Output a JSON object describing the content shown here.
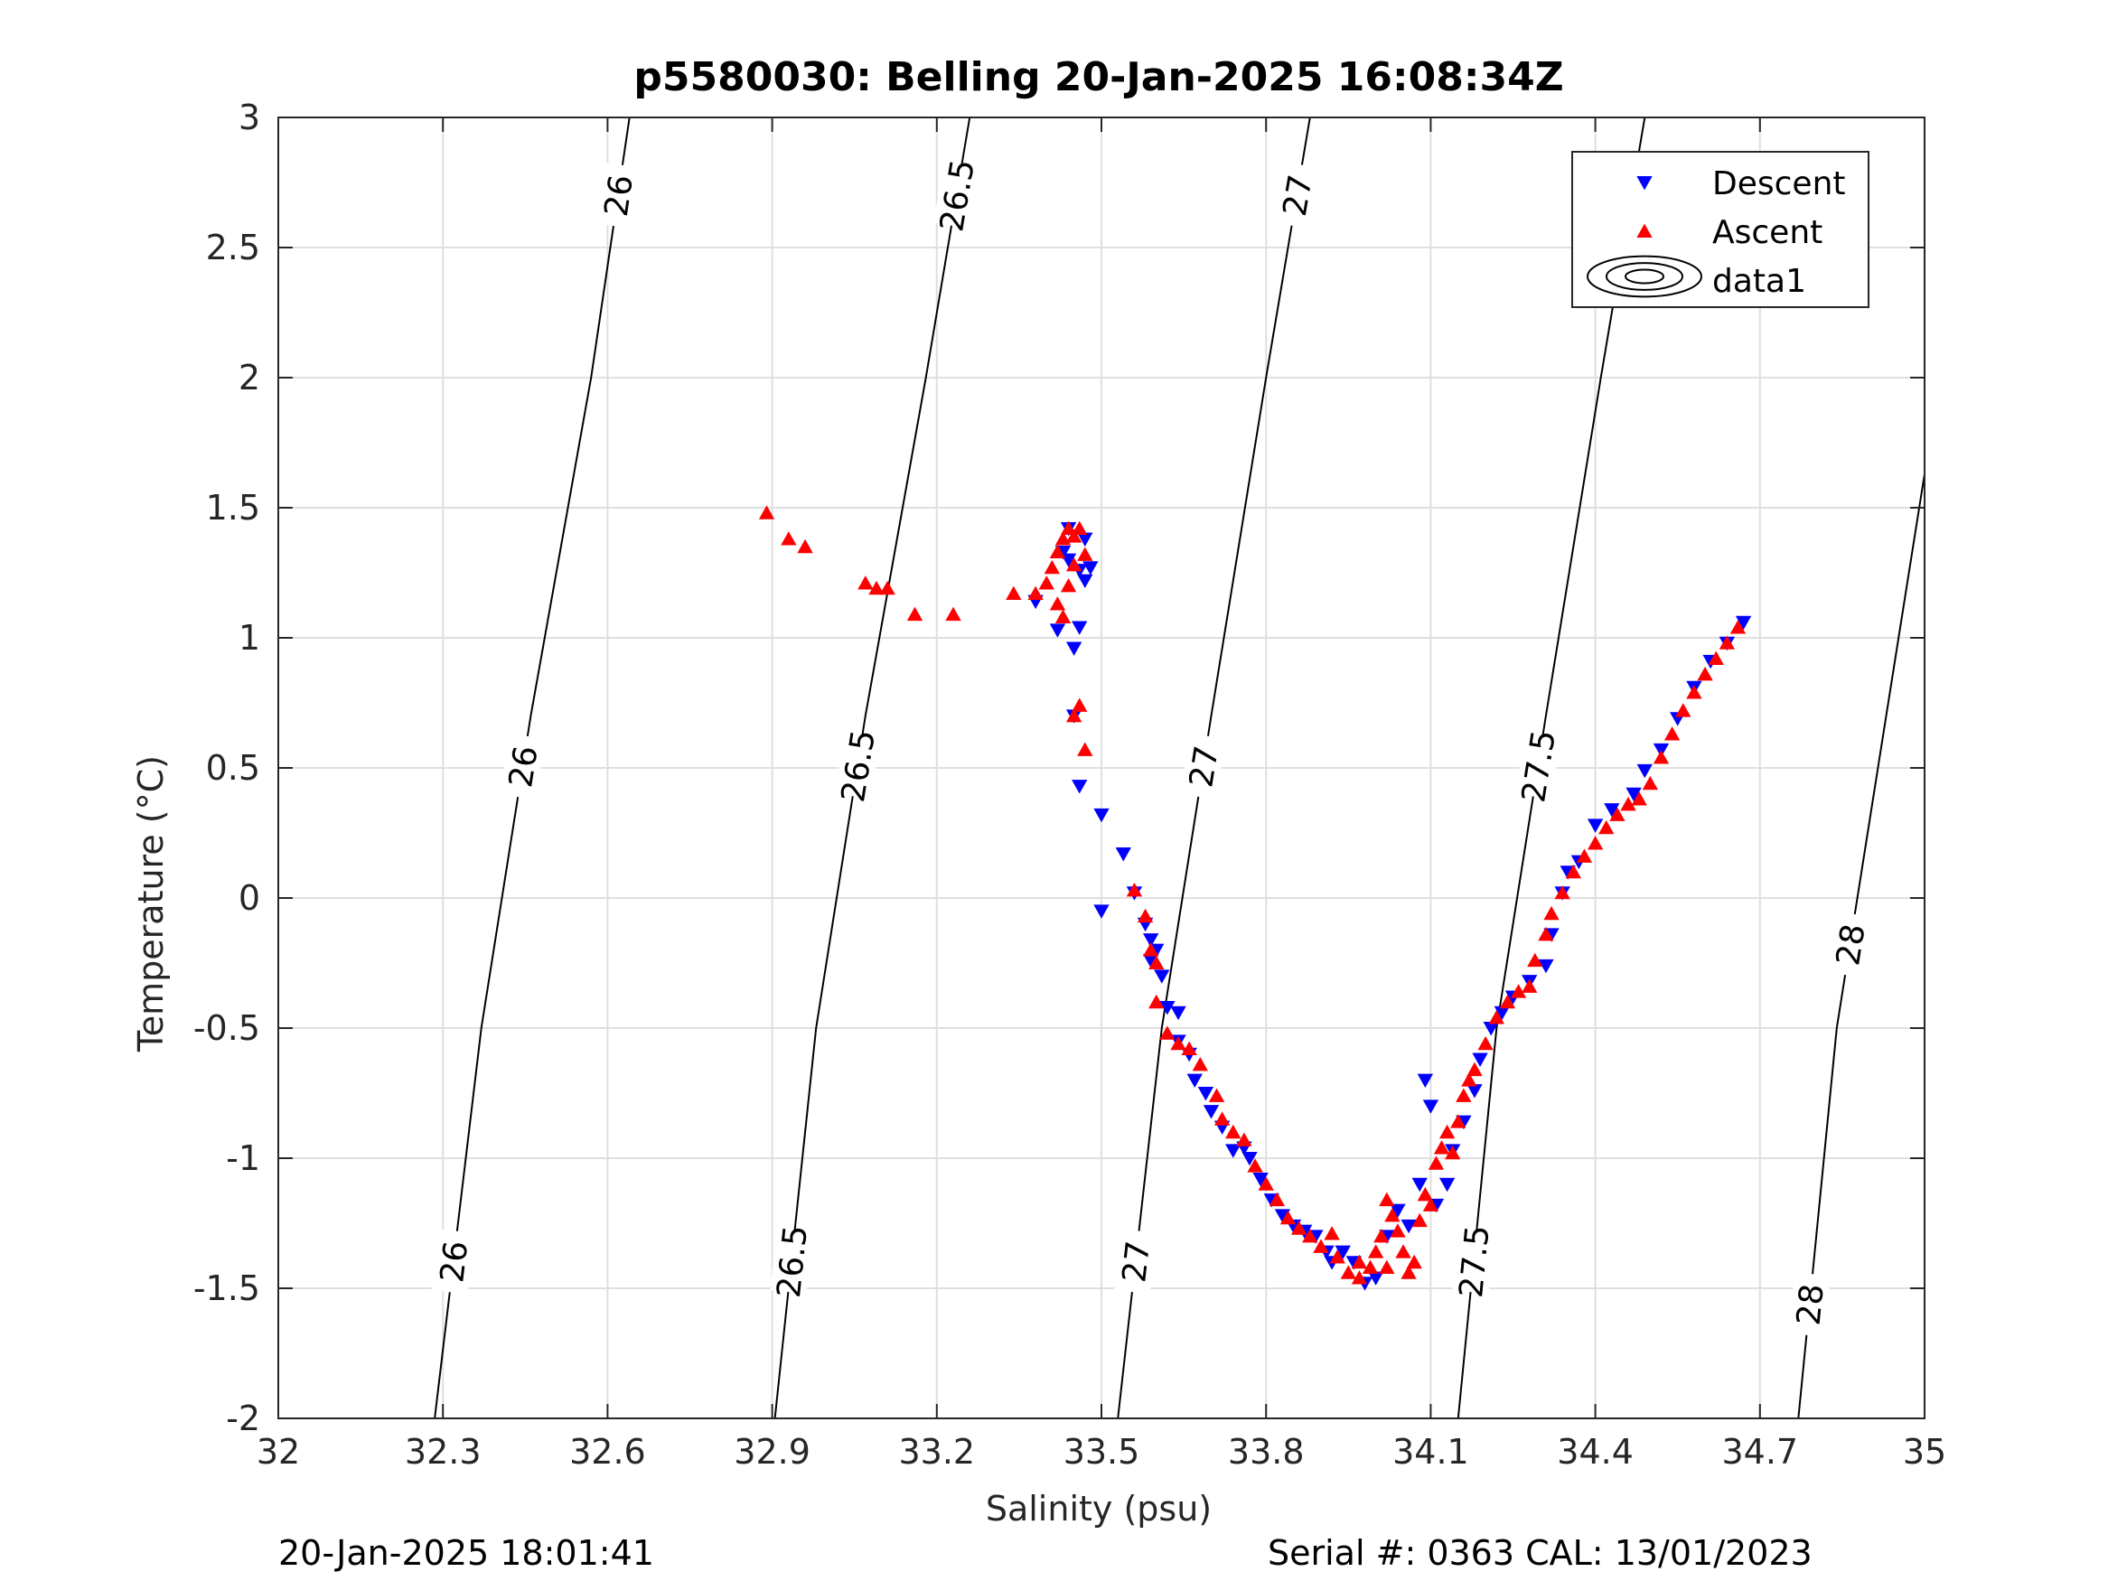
{
  "chart_data": {
    "type": "scatter",
    "title": "p5580030: Belling 20-Jan-2025 16:08:34Z",
    "xlabel": "Salinity (psu)",
    "ylabel": "Temperature (°C)",
    "xlim": [
      32,
      35
    ],
    "ylim": [
      -2,
      3
    ],
    "x_ticks": [
      "32",
      "32.3",
      "32.6",
      "32.9",
      "33.2",
      "33.5",
      "33.8",
      "34.1",
      "34.4",
      "34.7",
      "35"
    ],
    "y_ticks": [
      "-2",
      "-1.5",
      "-1",
      "-0.5",
      "0",
      "0.5",
      "1",
      "1.5",
      "2",
      "2.5",
      "3"
    ],
    "grid": true,
    "legend_position": "top-right",
    "legend": [
      "Descent",
      "Ascent",
      "data1"
    ],
    "colors": {
      "descent": "#0000ff",
      "ascent": "#ff0000",
      "contour": "#000000"
    },
    "series": [
      {
        "name": "Descent",
        "marker": "triangle-down",
        "points": [
          [
            33.47,
            1.38
          ],
          [
            33.48,
            1.27
          ],
          [
            33.46,
            1.26
          ],
          [
            33.44,
            1.3
          ],
          [
            33.46,
            1.04
          ],
          [
            33.45,
            0.96
          ],
          [
            33.42,
            1.03
          ],
          [
            33.45,
            0.7
          ],
          [
            33.46,
            0.43
          ],
          [
            33.5,
            0.32
          ],
          [
            33.54,
            0.17
          ],
          [
            33.56,
            0.02
          ],
          [
            33.58,
            -0.1
          ],
          [
            33.59,
            -0.16
          ],
          [
            33.59,
            -0.24
          ],
          [
            33.61,
            -0.3
          ],
          [
            33.62,
            -0.42
          ],
          [
            33.64,
            -0.44
          ],
          [
            33.64,
            -0.55
          ],
          [
            33.66,
            -0.6
          ],
          [
            33.67,
            -0.7
          ],
          [
            33.69,
            -0.75
          ],
          [
            33.7,
            -0.82
          ],
          [
            33.72,
            -0.88
          ],
          [
            33.74,
            -0.97
          ],
          [
            33.76,
            -0.96
          ],
          [
            33.77,
            -1.0
          ],
          [
            33.79,
            -1.08
          ],
          [
            33.81,
            -1.16
          ],
          [
            33.83,
            -1.22
          ],
          [
            33.85,
            -1.26
          ],
          [
            33.87,
            -1.28
          ],
          [
            33.89,
            -1.3
          ],
          [
            33.91,
            -1.36
          ],
          [
            33.92,
            -1.4
          ],
          [
            33.94,
            -1.36
          ],
          [
            33.96,
            -1.4
          ],
          [
            33.98,
            -1.48
          ],
          [
            34.0,
            -1.46
          ],
          [
            34.02,
            -1.3
          ],
          [
            34.04,
            -1.2
          ],
          [
            34.06,
            -1.26
          ],
          [
            34.08,
            -1.1
          ],
          [
            34.09,
            -0.7
          ],
          [
            34.1,
            -0.8
          ],
          [
            34.11,
            -1.18
          ],
          [
            34.13,
            -1.1
          ],
          [
            34.14,
            -0.97
          ],
          [
            34.16,
            -0.86
          ],
          [
            34.18,
            -0.74
          ],
          [
            34.19,
            -0.62
          ],
          [
            34.21,
            -0.5
          ],
          [
            34.23,
            -0.44
          ],
          [
            34.25,
            -0.38
          ],
          [
            34.28,
            -0.32
          ],
          [
            34.31,
            -0.26
          ],
          [
            34.32,
            -0.14
          ],
          [
            34.34,
            0.02
          ],
          [
            34.35,
            0.1
          ],
          [
            34.37,
            0.14
          ],
          [
            34.4,
            0.28
          ],
          [
            34.43,
            0.34
          ],
          [
            34.47,
            0.4
          ],
          [
            34.49,
            0.49
          ],
          [
            34.52,
            0.57
          ],
          [
            34.55,
            0.69
          ],
          [
            34.58,
            0.81
          ],
          [
            34.61,
            0.91
          ],
          [
            34.64,
            0.98
          ],
          [
            34.67,
            1.06
          ],
          [
            33.38,
            1.14
          ],
          [
            33.43,
            1.33
          ],
          [
            33.44,
            1.42
          ],
          [
            33.47,
            1.22
          ],
          [
            33.5,
            -0.05
          ],
          [
            33.6,
            -0.2
          ]
        ]
      },
      {
        "name": "Ascent",
        "marker": "triangle-up",
        "points": [
          [
            32.89,
            1.48
          ],
          [
            32.93,
            1.38
          ],
          [
            32.96,
            1.35
          ],
          [
            33.07,
            1.21
          ],
          [
            33.09,
            1.19
          ],
          [
            33.11,
            1.19
          ],
          [
            33.16,
            1.09
          ],
          [
            33.23,
            1.09
          ],
          [
            33.34,
            1.17
          ],
          [
            33.38,
            1.17
          ],
          [
            33.4,
            1.21
          ],
          [
            33.41,
            1.27
          ],
          [
            33.42,
            1.33
          ],
          [
            33.43,
            1.38
          ],
          [
            33.44,
            1.42
          ],
          [
            33.45,
            1.39
          ],
          [
            33.46,
            1.42
          ],
          [
            33.44,
            1.2
          ],
          [
            33.43,
            1.08
          ],
          [
            33.45,
            1.28
          ],
          [
            33.46,
            0.74
          ],
          [
            33.45,
            0.7
          ],
          [
            33.47,
            0.57
          ],
          [
            33.56,
            0.03
          ],
          [
            33.58,
            -0.07
          ],
          [
            33.59,
            -0.2
          ],
          [
            33.6,
            -0.25
          ],
          [
            33.6,
            -0.4
          ],
          [
            33.62,
            -0.52
          ],
          [
            33.64,
            -0.56
          ],
          [
            33.66,
            -0.58
          ],
          [
            33.68,
            -0.64
          ],
          [
            33.71,
            -0.76
          ],
          [
            33.72,
            -0.85
          ],
          [
            33.74,
            -0.9
          ],
          [
            33.76,
            -0.93
          ],
          [
            33.78,
            -1.03
          ],
          [
            33.8,
            -1.1
          ],
          [
            33.82,
            -1.16
          ],
          [
            33.84,
            -1.23
          ],
          [
            33.86,
            -1.27
          ],
          [
            33.88,
            -1.3
          ],
          [
            33.9,
            -1.34
          ],
          [
            33.92,
            -1.29
          ],
          [
            33.93,
            -1.38
          ],
          [
            33.95,
            -1.44
          ],
          [
            33.97,
            -1.46
          ],
          [
            33.99,
            -1.42
          ],
          [
            34.0,
            -1.36
          ],
          [
            34.01,
            -1.3
          ],
          [
            34.02,
            -1.16
          ],
          [
            34.03,
            -1.22
          ],
          [
            34.04,
            -1.28
          ],
          [
            34.05,
            -1.36
          ],
          [
            34.06,
            -1.44
          ],
          [
            34.07,
            -1.4
          ],
          [
            34.08,
            -1.24
          ],
          [
            34.09,
            -1.14
          ],
          [
            34.1,
            -1.18
          ],
          [
            34.11,
            -1.02
          ],
          [
            34.12,
            -0.96
          ],
          [
            34.13,
            -0.9
          ],
          [
            34.14,
            -0.98
          ],
          [
            34.15,
            -0.86
          ],
          [
            34.16,
            -0.76
          ],
          [
            34.17,
            -0.7
          ],
          [
            34.18,
            -0.66
          ],
          [
            34.2,
            -0.56
          ],
          [
            34.22,
            -0.46
          ],
          [
            34.24,
            -0.4
          ],
          [
            34.26,
            -0.36
          ],
          [
            34.28,
            -0.34
          ],
          [
            34.29,
            -0.24
          ],
          [
            34.31,
            -0.14
          ],
          [
            34.32,
            -0.06
          ],
          [
            34.34,
            0.02
          ],
          [
            34.36,
            0.1
          ],
          [
            34.38,
            0.16
          ],
          [
            34.4,
            0.21
          ],
          [
            34.42,
            0.27
          ],
          [
            34.44,
            0.32
          ],
          [
            34.46,
            0.36
          ],
          [
            34.48,
            0.38
          ],
          [
            34.5,
            0.44
          ],
          [
            34.52,
            0.54
          ],
          [
            34.54,
            0.63
          ],
          [
            34.56,
            0.72
          ],
          [
            34.58,
            0.79
          ],
          [
            34.6,
            0.86
          ],
          [
            34.62,
            0.92
          ],
          [
            34.64,
            0.98
          ],
          [
            34.66,
            1.04
          ],
          [
            33.47,
            1.32
          ],
          [
            33.42,
            1.13
          ],
          [
            33.97,
            -1.4
          ],
          [
            34.02,
            -1.42
          ]
        ]
      }
    ],
    "contours": [
      {
        "label": "26",
        "points": [
          [
            32.285,
            -2
          ],
          [
            32.37,
            -0.5
          ],
          [
            32.46,
            0.7
          ],
          [
            32.57,
            2.0
          ],
          [
            32.64,
            3
          ]
        ]
      },
      {
        "label": "26.5",
        "points": [
          [
            32.905,
            -2
          ],
          [
            32.98,
            -0.5
          ],
          [
            33.07,
            0.7
          ],
          [
            33.18,
            2.0
          ],
          [
            33.26,
            3
          ]
        ]
      },
      {
        "label": "27",
        "points": [
          [
            33.53,
            -2
          ],
          [
            33.61,
            -0.5
          ],
          [
            33.7,
            0.7
          ],
          [
            33.8,
            2.0
          ],
          [
            33.88,
            3
          ]
        ]
      },
      {
        "label": "27.5",
        "points": [
          [
            34.15,
            -2
          ],
          [
            34.22,
            -0.5
          ],
          [
            34.31,
            0.7
          ],
          [
            34.41,
            2.0
          ],
          [
            34.49,
            3
          ]
        ]
      },
      {
        "label": "28",
        "points": [
          [
            34.77,
            -2
          ],
          [
            34.84,
            -0.5
          ],
          [
            34.93,
            0.7
          ],
          [
            35.0,
            1.63
          ]
        ]
      }
    ]
  },
  "footer": {
    "timestamp": "20-Jan-2025 18:01:41",
    "serial": "Serial #: 0363  CAL: 13/01/2023"
  }
}
